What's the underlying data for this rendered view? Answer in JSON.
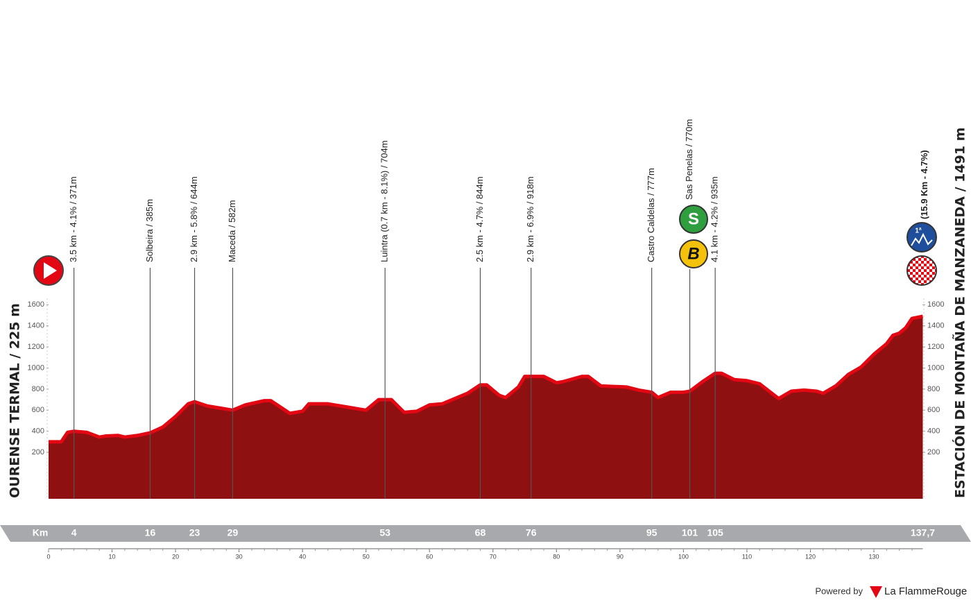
{
  "chart_data": {
    "type": "area",
    "start_name": "OURENSE TERMAL / 225 m",
    "finish_name": "ESTACIÓN DE MONTAÑA DE MANZANEDA / 1491 m",
    "x": [
      0,
      2,
      3,
      4,
      6,
      8,
      9,
      11,
      12,
      14,
      16,
      18,
      20,
      22,
      23,
      25,
      27,
      29,
      31,
      34,
      35,
      38,
      40,
      41,
      44,
      47,
      49,
      50,
      52,
      54,
      56,
      58,
      60,
      62,
      64,
      66,
      68,
      69,
      71,
      72,
      74,
      75,
      78,
      80,
      81,
      84,
      85,
      87,
      91,
      93,
      95,
      96,
      98,
      100,
      101,
      103,
      105,
      106,
      108,
      110,
      112,
      115,
      117,
      119,
      121,
      122,
      124,
      126,
      128,
      130,
      132,
      133,
      134,
      135,
      136,
      137.7
    ],
    "values": [
      300,
      300,
      390,
      400,
      390,
      345,
      355,
      360,
      345,
      360,
      385,
      440,
      540,
      660,
      680,
      640,
      620,
      600,
      650,
      690,
      690,
      570,
      590,
      660,
      660,
      630,
      610,
      600,
      700,
      700,
      580,
      590,
      650,
      660,
      710,
      760,
      840,
      840,
      740,
      720,
      820,
      920,
      920,
      860,
      870,
      920,
      920,
      830,
      820,
      790,
      770,
      720,
      770,
      770,
      780,
      870,
      950,
      950,
      890,
      880,
      850,
      710,
      780,
      790,
      780,
      760,
      830,
      940,
      1010,
      1130,
      1230,
      1310,
      1330,
      1380,
      1470,
      1490
    ],
    "color": "#8e1010",
    "line_color": "#e30613",
    "xlim": [
      0,
      137.7
    ],
    "xticks": [
      0,
      10,
      20,
      30,
      40,
      50,
      60,
      70,
      80,
      90,
      100,
      110,
      120,
      130
    ],
    "ylim": [
      -240,
      1990
    ],
    "yticks": [
      200,
      400,
      600,
      800,
      1000,
      1200,
      1400,
      1600
    ],
    "km_title": "Km",
    "km_markers": [
      4,
      16,
      23,
      29,
      53,
      68,
      76,
      95,
      101,
      105,
      {
        "value": 137.7,
        "label": "137,7"
      }
    ],
    "passes": [
      {
        "km": 4,
        "label": "3.5 km - 4.1% / 371m"
      },
      {
        "km": 16,
        "label": "Solbeira / 385m"
      },
      {
        "km": 23,
        "label": "2.9 km - 5.8% / 644m"
      },
      {
        "km": 29,
        "label": "Maceda / 582m"
      },
      {
        "km": 53,
        "label": "Luintra (0.7 km - 8.1%) / 704m"
      },
      {
        "km": 68,
        "label": "2.5 km - 4.7% / 844m"
      },
      {
        "km": 76,
        "label": "2.9 km - 6.9% / 918m"
      },
      {
        "km": 95,
        "label": "Castro Caldelas / 777m"
      },
      {
        "km": 101,
        "label": "Sas Penelas / 770m"
      },
      {
        "km": 105,
        "label": "4.1 km - 4.2% / 935m"
      },
      {
        "km": 137.7,
        "label": "(15.9 Km - 4.7%)"
      }
    ],
    "sprint_icon": "S",
    "bonus_icon": "B",
    "climb_icon": "1ª",
    "powered_by": "Powered by",
    "brand": "La FlammeRouge"
  }
}
